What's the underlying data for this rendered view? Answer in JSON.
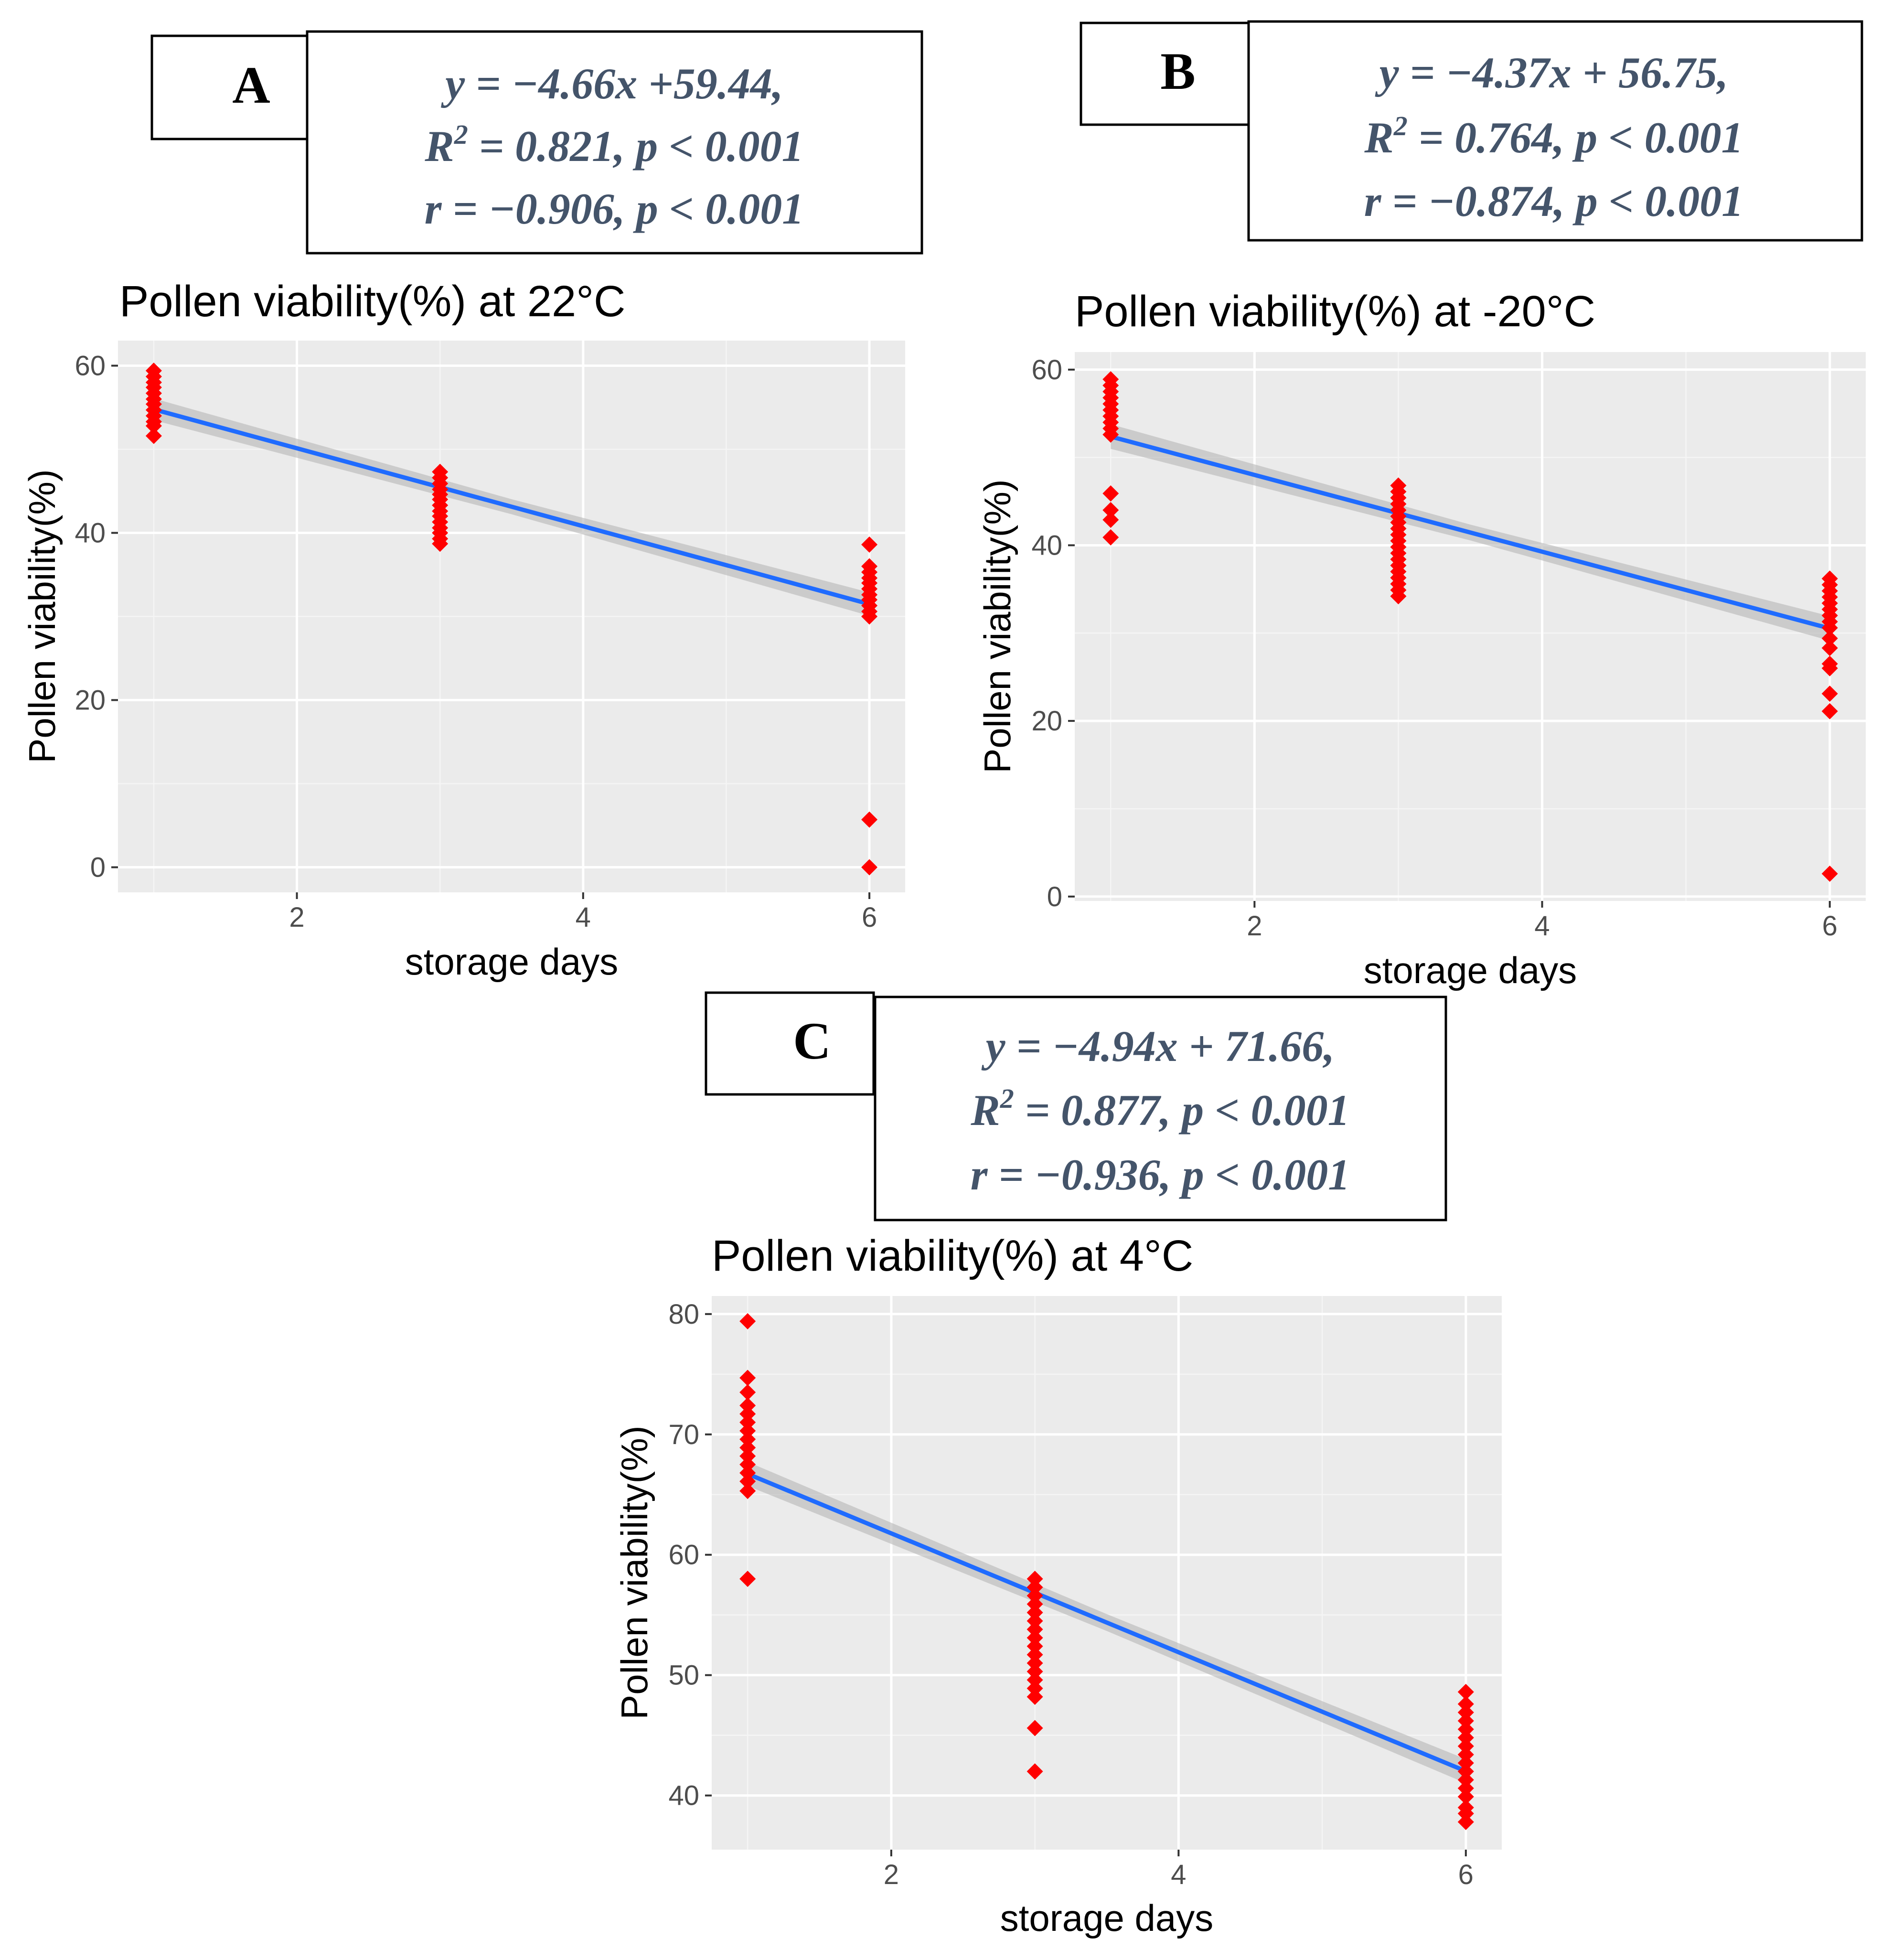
{
  "figure": {
    "panels": [
      {
        "letter": "A",
        "eq_lines": [
          "y = −4.66x +59.44,",
          "R",
          "2",
          " = 0.821, p < 0.001",
          "r = −0.906, p < 0.001"
        ]
      },
      {
        "letter": "B",
        "eq_lines": [
          "y = −4.37x + 56.75,",
          "R",
          "2",
          " = 0.764, p < 0.001",
          "r = −0.874, p < 0.001"
        ]
      },
      {
        "letter": "C",
        "eq_lines": [
          "y = −4.94x + 71.66,",
          "R",
          "2",
          " = 0.877, p < 0.001",
          "r = −0.936, p < 0.001"
        ]
      }
    ]
  },
  "colors": {
    "points": "#ff0000",
    "fit_line": "#1f6bff",
    "panel_background": "#ebebeb",
    "equation_text": "#44546a"
  },
  "chart_data": [
    {
      "type": "scatter",
      "title": "Pollen viability(%) at 22°C",
      "xlabel": "storage days",
      "ylabel": "Pollen viability(%)",
      "xlim": [
        0.75,
        6.25
      ],
      "ylim": [
        -3,
        63
      ],
      "xticks": [
        2,
        4,
        6
      ],
      "xtick_labels": [
        "2",
        "4",
        "6"
      ],
      "yticks": [
        0,
        20,
        40,
        60
      ],
      "ytick_labels": [
        "0",
        "20",
        "40",
        "60"
      ],
      "grid": true,
      "series": [
        {
          "name": "observations",
          "points": [
            [
              1,
              59.4
            ],
            [
              1,
              58.7
            ],
            [
              1,
              58.0
            ],
            [
              1,
              57.4
            ],
            [
              1,
              56.7
            ],
            [
              1,
              56.0
            ],
            [
              1,
              55.4
            ],
            [
              1,
              54.7
            ],
            [
              1,
              54.0
            ],
            [
              1,
              53.3
            ],
            [
              1,
              52.8
            ],
            [
              1,
              51.6
            ],
            [
              3,
              47.3
            ],
            [
              3,
              46.6
            ],
            [
              3,
              45.9
            ],
            [
              3,
              45.2
            ],
            [
              3,
              44.6
            ],
            [
              3,
              44.0
            ],
            [
              3,
              43.3
            ],
            [
              3,
              42.6
            ],
            [
              3,
              42.0
            ],
            [
              3,
              41.3
            ],
            [
              3,
              40.6
            ],
            [
              3,
              40.0
            ],
            [
              3,
              39.3
            ],
            [
              3,
              38.7
            ],
            [
              6,
              38.6
            ],
            [
              6,
              36.0
            ],
            [
              6,
              35.3
            ],
            [
              6,
              34.6
            ],
            [
              6,
              34.0
            ],
            [
              6,
              33.3
            ],
            [
              6,
              32.6
            ],
            [
              6,
              32.0
            ],
            [
              6,
              31.3
            ],
            [
              6,
              30.6
            ],
            [
              6,
              30.0
            ],
            [
              6,
              5.7
            ],
            [
              6,
              0.0
            ]
          ]
        }
      ],
      "fit": {
        "slope": -4.66,
        "intercept": 59.44,
        "x_range": [
          1,
          6
        ],
        "ci_half_width": [
          1.3,
          0.9,
          1.4
        ]
      }
    },
    {
      "type": "scatter",
      "title": "Pollen viability(%) at -20°C",
      "xlabel": "storage days",
      "ylabel": "Pollen viability(%)",
      "xlim": [
        0.75,
        6.25
      ],
      "ylim": [
        -0.5,
        62
      ],
      "xticks": [
        2,
        4,
        6
      ],
      "xtick_labels": [
        "2",
        "4",
        "6"
      ],
      "yticks": [
        0,
        20,
        40,
        60
      ],
      "ytick_labels": [
        "0",
        "20",
        "40",
        "60"
      ],
      "grid": true,
      "series": [
        {
          "name": "observations",
          "points": [
            [
              1,
              58.9
            ],
            [
              1,
              58.2
            ],
            [
              1,
              57.5
            ],
            [
              1,
              56.8
            ],
            [
              1,
              56.1
            ],
            [
              1,
              55.4
            ],
            [
              1,
              54.7
            ],
            [
              1,
              54.0
            ],
            [
              1,
              53.3
            ],
            [
              1,
              52.6
            ],
            [
              1,
              45.9
            ],
            [
              1,
              44.0
            ],
            [
              1,
              42.9
            ],
            [
              1,
              40.9
            ],
            [
              3,
              46.8
            ],
            [
              3,
              46.1
            ],
            [
              3,
              45.4
            ],
            [
              3,
              44.7
            ],
            [
              3,
              44.0
            ],
            [
              3,
              43.3
            ],
            [
              3,
              42.6
            ],
            [
              3,
              41.9
            ],
            [
              3,
              41.2
            ],
            [
              3,
              40.5
            ],
            [
              3,
              39.8
            ],
            [
              3,
              39.1
            ],
            [
              3,
              38.4
            ],
            [
              3,
              37.7
            ],
            [
              3,
              37.0
            ],
            [
              3,
              36.3
            ],
            [
              3,
              35.6
            ],
            [
              3,
              34.9
            ],
            [
              3,
              34.2
            ],
            [
              6,
              36.2
            ],
            [
              6,
              35.5
            ],
            [
              6,
              34.8
            ],
            [
              6,
              34.1
            ],
            [
              6,
              33.4
            ],
            [
              6,
              32.7
            ],
            [
              6,
              32.0
            ],
            [
              6,
              31.3
            ],
            [
              6,
              30.6
            ],
            [
              6,
              29.4
            ],
            [
              6,
              28.3
            ],
            [
              6,
              26.5
            ],
            [
              6,
              26.0
            ],
            [
              6,
              23.1
            ],
            [
              6,
              21.1
            ],
            [
              6,
              2.6
            ]
          ]
        }
      ],
      "fit": {
        "slope": -4.37,
        "intercept": 56.75,
        "x_range": [
          1,
          6
        ],
        "ci_half_width": [
          1.4,
          0.9,
          1.4
        ]
      }
    },
    {
      "type": "scatter",
      "title": "Pollen viability(%) at 4°C",
      "xlabel": "storage days",
      "ylabel": "Pollen viability(%)",
      "xlim": [
        0.75,
        6.25
      ],
      "ylim": [
        35.5,
        81.5
      ],
      "xticks": [
        2,
        4,
        6
      ],
      "xtick_labels": [
        "2",
        "4",
        "6"
      ],
      "yticks": [
        40,
        50,
        60,
        70,
        80
      ],
      "ytick_labels": [
        "40",
        "50",
        "60",
        "70",
        "80"
      ],
      "grid": true,
      "series": [
        {
          "name": "observations",
          "points": [
            [
              1,
              79.4
            ],
            [
              1,
              74.7
            ],
            [
              1,
              73.5
            ],
            [
              1,
              72.4
            ],
            [
              1,
              71.7
            ],
            [
              1,
              71.0
            ],
            [
              1,
              70.3
            ],
            [
              1,
              69.6
            ],
            [
              1,
              68.9
            ],
            [
              1,
              68.2
            ],
            [
              1,
              67.5
            ],
            [
              1,
              66.8
            ],
            [
              1,
              66.1
            ],
            [
              1,
              65.3
            ],
            [
              1,
              58.0
            ],
            [
              3,
              58.0
            ],
            [
              3,
              57.3
            ],
            [
              3,
              56.6
            ],
            [
              3,
              55.9
            ],
            [
              3,
              55.2
            ],
            [
              3,
              54.5
            ],
            [
              3,
              53.8
            ],
            [
              3,
              53.1
            ],
            [
              3,
              52.4
            ],
            [
              3,
              51.7
            ],
            [
              3,
              51.0
            ],
            [
              3,
              50.3
            ],
            [
              3,
              49.6
            ],
            [
              3,
              48.9
            ],
            [
              3,
              48.2
            ],
            [
              3,
              45.6
            ],
            [
              3,
              42.0
            ],
            [
              6,
              48.6
            ],
            [
              6,
              47.6
            ],
            [
              6,
              46.9
            ],
            [
              6,
              46.2
            ],
            [
              6,
              45.5
            ],
            [
              6,
              44.8
            ],
            [
              6,
              44.1
            ],
            [
              6,
              43.4
            ],
            [
              6,
              42.7
            ],
            [
              6,
              42.0
            ],
            [
              6,
              41.3
            ],
            [
              6,
              40.6
            ],
            [
              6,
              39.9
            ],
            [
              6,
              39.0
            ],
            [
              6,
              38.5
            ],
            [
              6,
              37.8
            ]
          ]
        }
      ],
      "fit": {
        "slope": -4.94,
        "intercept": 71.66,
        "x_range": [
          1,
          6
        ],
        "ci_half_width": [
          1.0,
          0.7,
          1.0
        ]
      }
    }
  ]
}
